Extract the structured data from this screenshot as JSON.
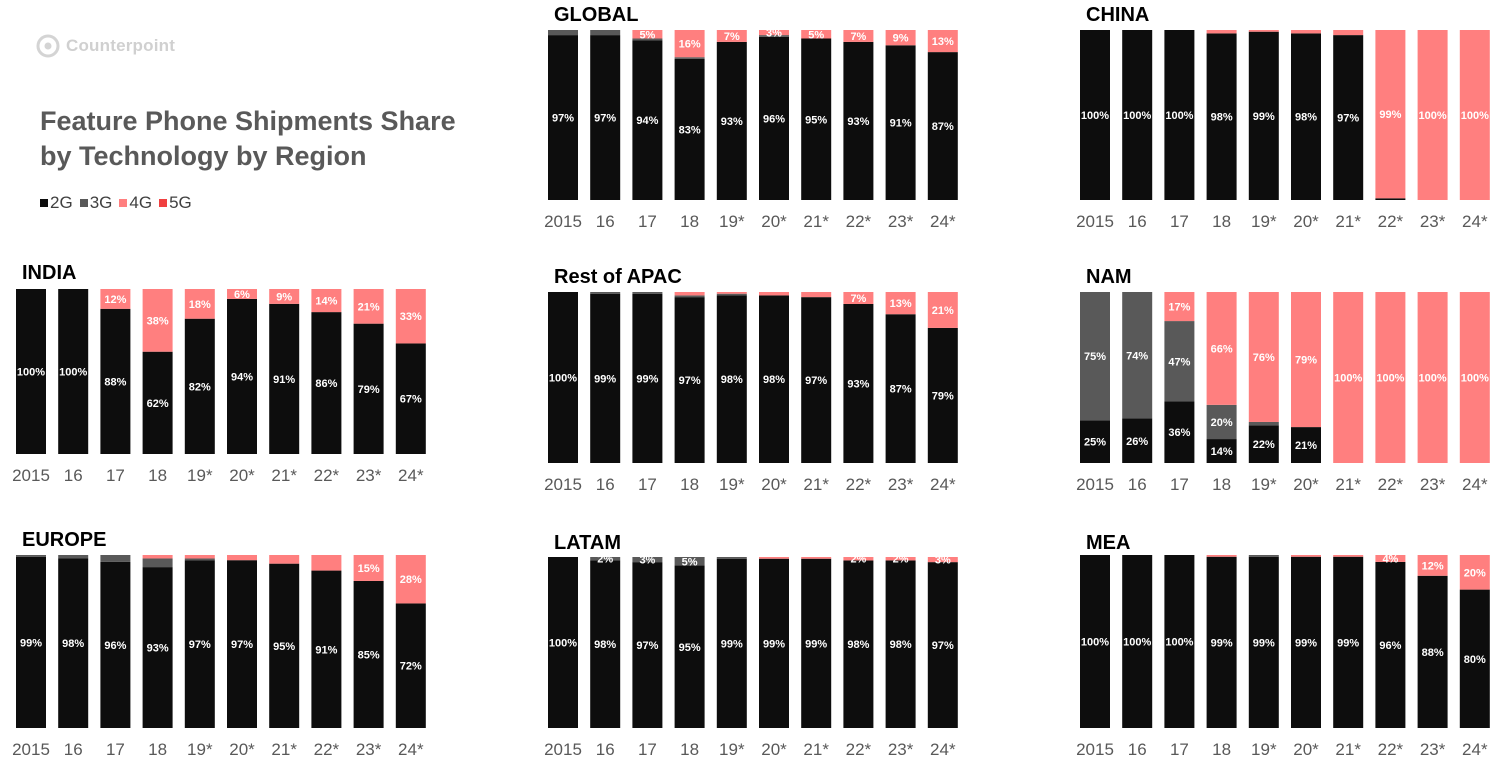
{
  "header": {
    "logo_text": "Counterpoint",
    "title": "Feature Phone Shipments Share\nby Technology by  Region",
    "legend": [
      {
        "label": "2G",
        "color": "#0d0d0d"
      },
      {
        "label": "3G",
        "color": "#595959"
      },
      {
        "label": "4G",
        "color": "#ff7f7f"
      },
      {
        "label": "5G",
        "color": "#f04040"
      }
    ]
  },
  "chart_data": [
    {
      "type": "bar",
      "stacked": true,
      "title": "GLOBAL",
      "categories": [
        "2015",
        "16",
        "17",
        "18",
        "19*",
        "20*",
        "21*",
        "22*",
        "23*",
        "24*"
      ],
      "ylim": [
        0,
        100
      ],
      "series": [
        {
          "name": "2G",
          "values": [
            97,
            97,
            94,
            83,
            93,
            96,
            95,
            93,
            91,
            87
          ]
        },
        {
          "name": "3G",
          "values": [
            3,
            3,
            1,
            1,
            0,
            1,
            0,
            0,
            0,
            0
          ]
        },
        {
          "name": "4G",
          "values": [
            0,
            0,
            5,
            16,
            7,
            3,
            5,
            7,
            9,
            13
          ]
        },
        {
          "name": "5G",
          "values": [
            0,
            0,
            0,
            0,
            0,
            0,
            0,
            0,
            0,
            0
          ]
        }
      ],
      "data_labels": [
        {
          "series": "2G",
          "labels": [
            "97%",
            "97%",
            "94%",
            "83%",
            "93%",
            "96%",
            "95%",
            "93%",
            "91%",
            "87%"
          ]
        },
        {
          "series": "4G",
          "labels": [
            "",
            "",
            "5%",
            "16%",
            "7%",
            "3%",
            "5%",
            "7%",
            "9%",
            "13%"
          ]
        }
      ]
    },
    {
      "type": "bar",
      "stacked": true,
      "title": "CHINA",
      "categories": [
        "2015",
        "16",
        "17",
        "18",
        "19*",
        "20*",
        "21*",
        "22*",
        "23*",
        "24*"
      ],
      "ylim": [
        0,
        100
      ],
      "series": [
        {
          "name": "2G",
          "values": [
            100,
            100,
            100,
            98,
            99,
            98,
            97,
            1,
            0,
            0
          ]
        },
        {
          "name": "3G",
          "values": [
            0,
            0,
            0,
            0,
            0,
            0,
            0,
            0,
            0,
            0
          ]
        },
        {
          "name": "4G",
          "values": [
            0,
            0,
            0,
            2,
            1,
            2,
            3,
            99,
            100,
            100
          ]
        },
        {
          "name": "5G",
          "values": [
            0,
            0,
            0,
            0,
            0,
            0,
            0,
            0,
            0,
            0
          ]
        }
      ],
      "data_labels": [
        {
          "series": "2G",
          "labels": [
            "100%",
            "100%",
            "100%",
            "98%",
            "99%",
            "98%",
            "97%",
            "",
            "",
            ""
          ]
        },
        {
          "series": "4G",
          "labels": [
            "",
            "",
            "",
            "",
            "",
            "",
            "",
            "99%",
            "100%",
            "100%"
          ]
        }
      ]
    },
    {
      "type": "bar",
      "stacked": true,
      "title": "INDIA",
      "categories": [
        "2015",
        "16",
        "17",
        "18",
        "19*",
        "20*",
        "21*",
        "22*",
        "23*",
        "24*"
      ],
      "ylim": [
        0,
        100
      ],
      "series": [
        {
          "name": "2G",
          "values": [
            100,
            100,
            88,
            62,
            82,
            94,
            91,
            86,
            79,
            67
          ]
        },
        {
          "name": "3G",
          "values": [
            0,
            0,
            0,
            0,
            0,
            0,
            0,
            0,
            0,
            0
          ]
        },
        {
          "name": "4G",
          "values": [
            0,
            0,
            12,
            38,
            18,
            6,
            9,
            14,
            21,
            33
          ]
        },
        {
          "name": "5G",
          "values": [
            0,
            0,
            0,
            0,
            0,
            0,
            0,
            0,
            0,
            0
          ]
        }
      ],
      "data_labels": [
        {
          "series": "2G",
          "labels": [
            "100%",
            "100%",
            "88%",
            "62%",
            "82%",
            "94%",
            "91%",
            "86%",
            "79%",
            "67%"
          ]
        },
        {
          "series": "4G",
          "labels": [
            "",
            "",
            "12%",
            "38%",
            "18%",
            "6%",
            "9%",
            "14%",
            "21%",
            "33%"
          ]
        }
      ]
    },
    {
      "type": "bar",
      "stacked": true,
      "title": "Rest of APAC",
      "categories": [
        "2015",
        "16",
        "17",
        "18",
        "19*",
        "20*",
        "21*",
        "22*",
        "23*",
        "24*"
      ],
      "ylim": [
        0,
        100
      ],
      "series": [
        {
          "name": "2G",
          "values": [
            100,
            99,
            99,
            97,
            98,
            98,
            97,
            93,
            87,
            79
          ]
        },
        {
          "name": "3G",
          "values": [
            0,
            1,
            1,
            1,
            1,
            0,
            0,
            0,
            0,
            0
          ]
        },
        {
          "name": "4G",
          "values": [
            0,
            0,
            0,
            2,
            1,
            2,
            3,
            7,
            13,
            21
          ]
        },
        {
          "name": "5G",
          "values": [
            0,
            0,
            0,
            0,
            0,
            0,
            0,
            0,
            0,
            0
          ]
        }
      ],
      "data_labels": [
        {
          "series": "2G",
          "labels": [
            "100%",
            "99%",
            "99%",
            "97%",
            "98%",
            "98%",
            "97%",
            "93%",
            "87%",
            "79%"
          ]
        },
        {
          "series": "4G",
          "labels": [
            "",
            "",
            "",
            "",
            "",
            "",
            "",
            "7%",
            "13%",
            "21%"
          ]
        }
      ]
    },
    {
      "type": "bar",
      "stacked": true,
      "title": "NAM",
      "categories": [
        "2015",
        "16",
        "17",
        "18",
        "19*",
        "20*",
        "21*",
        "22*",
        "23*",
        "24*"
      ],
      "ylim": [
        0,
        100
      ],
      "series": [
        {
          "name": "2G",
          "values": [
            25,
            26,
            36,
            14,
            22,
            21,
            0,
            0,
            0,
            0
          ]
        },
        {
          "name": "3G",
          "values": [
            75,
            74,
            47,
            20,
            2,
            0,
            0,
            0,
            0,
            0
          ]
        },
        {
          "name": "4G",
          "values": [
            0,
            0,
            17,
            66,
            76,
            79,
            100,
            100,
            100,
            100
          ]
        },
        {
          "name": "5G",
          "values": [
            0,
            0,
            0,
            0,
            0,
            0,
            0,
            0,
            0,
            0
          ]
        }
      ],
      "data_labels": [
        {
          "series": "2G",
          "labels": [
            "25%",
            "26%",
            "36%",
            "14%",
            "22%",
            "21%",
            "",
            "",
            "",
            ""
          ]
        },
        {
          "series": "3G",
          "labels": [
            "75%",
            "74%",
            "47%",
            "20%",
            "",
            "",
            "",
            "",
            "",
            ""
          ]
        },
        {
          "series": "4G",
          "labels": [
            "",
            "",
            "17%",
            "66%",
            "76%",
            "79%",
            "100%",
            "100%",
            "100%",
            "100%"
          ]
        }
      ]
    },
    {
      "type": "bar",
      "stacked": true,
      "title": "EUROPE",
      "categories": [
        "2015",
        "16",
        "17",
        "18",
        "19*",
        "20*",
        "21*",
        "22*",
        "23*",
        "24*"
      ],
      "ylim": [
        0,
        100
      ],
      "series": [
        {
          "name": "2G",
          "values": [
            99,
            98,
            96,
            93,
            97,
            97,
            95,
            91,
            85,
            72
          ]
        },
        {
          "name": "3G",
          "values": [
            1,
            2,
            4,
            5,
            1,
            0,
            0,
            0,
            0,
            0
          ]
        },
        {
          "name": "4G",
          "values": [
            0,
            0,
            0,
            2,
            2,
            3,
            5,
            9,
            15,
            28
          ]
        },
        {
          "name": "5G",
          "values": [
            0,
            0,
            0,
            0,
            0,
            0,
            0,
            0,
            0,
            0
          ]
        }
      ],
      "data_labels": [
        {
          "series": "2G",
          "labels": [
            "99%",
            "98%",
            "96%",
            "93%",
            "97%",
            "97%",
            "95%",
            "91%",
            "85%",
            "72%"
          ]
        },
        {
          "series": "4G",
          "labels": [
            "",
            "",
            "",
            "",
            "",
            "",
            "",
            "",
            "15%",
            "28%"
          ]
        }
      ]
    },
    {
      "type": "bar",
      "stacked": true,
      "title": "LATAM",
      "categories": [
        "2015",
        "16",
        "17",
        "18",
        "19*",
        "20*",
        "21*",
        "22*",
        "23*",
        "24*"
      ],
      "ylim": [
        0,
        100
      ],
      "series": [
        {
          "name": "2G",
          "values": [
            100,
            98,
            97,
            95,
            99,
            99,
            99,
            98,
            98,
            97
          ]
        },
        {
          "name": "3G",
          "values": [
            0,
            2,
            3,
            5,
            1,
            0,
            0,
            0,
            0,
            0
          ]
        },
        {
          "name": "4G",
          "values": [
            0,
            0,
            0,
            0,
            0,
            1,
            1,
            2,
            2,
            3
          ]
        },
        {
          "name": "5G",
          "values": [
            0,
            0,
            0,
            0,
            0,
            0,
            0,
            0,
            0,
            0
          ]
        }
      ],
      "data_labels": [
        {
          "series": "2G",
          "labels": [
            "100%",
            "98%",
            "97%",
            "95%",
            "99%",
            "99%",
            "99%",
            "98%",
            "98%",
            "97%"
          ]
        },
        {
          "series": "3G",
          "labels": [
            "",
            "2%",
            "3%",
            "5%",
            "",
            "",
            "",
            "",
            "",
            ""
          ]
        },
        {
          "series": "4G",
          "labels": [
            "",
            "",
            "",
            "",
            "",
            "",
            "",
            "2%",
            "2%",
            "3%"
          ]
        }
      ]
    },
    {
      "type": "bar",
      "stacked": true,
      "title": "MEA",
      "categories": [
        "2015",
        "16",
        "17",
        "18",
        "19*",
        "20*",
        "21*",
        "22*",
        "23*",
        "24*"
      ],
      "ylim": [
        0,
        100
      ],
      "series": [
        {
          "name": "2G",
          "values": [
            100,
            100,
            100,
            99,
            99,
            99,
            99,
            96,
            88,
            80
          ]
        },
        {
          "name": "3G",
          "values": [
            0,
            0,
            0,
            0,
            1,
            0,
            0,
            0,
            0,
            0
          ]
        },
        {
          "name": "4G",
          "values": [
            0,
            0,
            0,
            1,
            0,
            1,
            1,
            4,
            12,
            20
          ]
        },
        {
          "name": "5G",
          "values": [
            0,
            0,
            0,
            0,
            0,
            0,
            0,
            0,
            0,
            0
          ]
        }
      ],
      "data_labels": [
        {
          "series": "2G",
          "labels": [
            "100%",
            "100%",
            "100%",
            "99%",
            "99%",
            "99%",
            "99%",
            "96%",
            "88%",
            "80%"
          ]
        },
        {
          "series": "4G",
          "labels": [
            "",
            "",
            "",
            "",
            "",
            "",
            "",
            "4%",
            "12%",
            "20%"
          ]
        }
      ]
    }
  ]
}
